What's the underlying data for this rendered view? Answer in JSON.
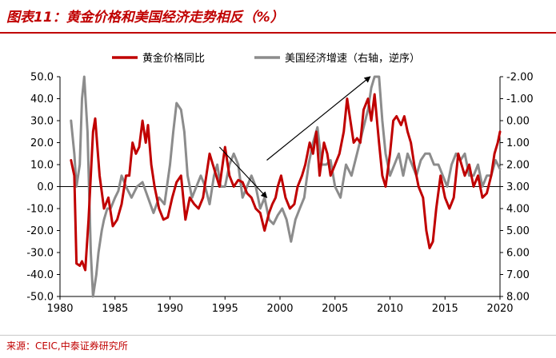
{
  "header": {
    "title": "图表11：黄金价格和美国经济走势相反（%）"
  },
  "footer": {
    "source": "来源：CEIC,中泰证券研究所"
  },
  "chart_data": {
    "type": "line",
    "title": "图表11：黄金价格和美国经济走势相反（%）",
    "xlabel": "",
    "ylabel": "",
    "xlim": [
      1980,
      2020
    ],
    "x_ticks": [
      "1980",
      "1985",
      "1990",
      "1995",
      "2000",
      "2005",
      "2010",
      "2015",
      "2020"
    ],
    "ylim_left": [
      -50,
      50
    ],
    "y_ticks_left": [
      "50.0",
      "40.0",
      "30.0",
      "20.0",
      "10.0",
      "0.0",
      "-10.0",
      "-20.0",
      "-30.0",
      "-40.0",
      "-50.0"
    ],
    "ylim_right": [
      -2,
      8
    ],
    "right_axis_inverted": true,
    "y_ticks_right": [
      "-2.00",
      "-1.00",
      "0.00",
      "1.00",
      "2.00",
      "3.00",
      "4.00",
      "5.00",
      "6.00",
      "7.00",
      "8.00"
    ],
    "legend_position": "top",
    "grid": false,
    "series": [
      {
        "name": "黄金价格同比",
        "axis": "left",
        "color": "#c00000",
        "x": [
          1981.0,
          1981.3,
          1981.5,
          1981.8,
          1982.0,
          1982.3,
          1982.6,
          1983.0,
          1983.2,
          1983.6,
          1984.0,
          1984.4,
          1984.8,
          1985.2,
          1985.6,
          1986.0,
          1986.3,
          1986.6,
          1986.9,
          1987.2,
          1987.5,
          1987.8,
          1988.0,
          1988.3,
          1988.6,
          1989.0,
          1989.4,
          1989.8,
          1990.2,
          1990.6,
          1991.0,
          1991.4,
          1991.8,
          1992.2,
          1992.6,
          1993.0,
          1993.3,
          1993.6,
          1993.9,
          1994.2,
          1994.5,
          1995.0,
          1995.4,
          1995.8,
          1996.2,
          1996.6,
          1997.0,
          1997.4,
          1997.8,
          1998.2,
          1998.6,
          1999.0,
          1999.3,
          1999.6,
          1999.8,
          2000.1,
          2000.5,
          2000.9,
          2001.3,
          2001.6,
          2002.0,
          2002.3,
          2002.7,
          2003.0,
          2003.3,
          2003.6,
          2004.0,
          2004.3,
          2004.6,
          2005.0,
          2005.4,
          2005.8,
          2006.1,
          2006.4,
          2006.7,
          2007.0,
          2007.3,
          2007.6,
          2008.0,
          2008.3,
          2008.6,
          2009.0,
          2009.3,
          2009.6,
          2010.0,
          2010.3,
          2010.6,
          2011.0,
          2011.3,
          2011.6,
          2011.9,
          2012.2,
          2012.6,
          2013.0,
          2013.3,
          2013.6,
          2013.9,
          2014.2,
          2014.6,
          2015.0,
          2015.4,
          2015.8,
          2016.2,
          2016.5,
          2016.8,
          2017.2,
          2017.6,
          2018.0,
          2018.4,
          2018.8,
          2019.2,
          2019.5,
          2019.8,
          2020.0
        ],
        "values": [
          12,
          5,
          -35,
          -36,
          -34,
          -38,
          -15,
          25,
          31,
          5,
          -10,
          -5,
          -18,
          -15,
          -8,
          5,
          5,
          20,
          15,
          18,
          30,
          20,
          28,
          10,
          0,
          -10,
          -15,
          -14,
          -5,
          2,
          5,
          -15,
          -5,
          -8,
          -10,
          -5,
          5,
          15,
          10,
          5,
          0,
          18,
          5,
          0,
          3,
          2,
          -3,
          -5,
          -10,
          -12,
          -20,
          -12,
          -8,
          -5,
          0,
          5,
          -5,
          -10,
          -8,
          0,
          5,
          10,
          20,
          15,
          25,
          5,
          20,
          15,
          5,
          10,
          15,
          25,
          40,
          30,
          20,
          22,
          20,
          35,
          40,
          30,
          42,
          20,
          5,
          0,
          15,
          30,
          32,
          28,
          32,
          25,
          20,
          10,
          0,
          -5,
          -20,
          -28,
          -25,
          -10,
          5,
          -5,
          -10,
          -5,
          15,
          10,
          5,
          10,
          0,
          5,
          -5,
          -3,
          5,
          15,
          20,
          25
        ]
      },
      {
        "name": "美国经济增速（右轴，逆序）",
        "axis": "right",
        "color": "#8c8c8c",
        "x": [
          1981.0,
          1981.3,
          1981.5,
          1981.8,
          1982.0,
          1982.2,
          1982.5,
          1982.8,
          1983.0,
          1983.3,
          1983.5,
          1983.8,
          1984.0,
          1984.3,
          1984.6,
          1985.0,
          1985.3,
          1985.6,
          1986.0,
          1986.5,
          1987.0,
          1987.5,
          1988.0,
          1988.5,
          1989.0,
          1989.5,
          1990.0,
          1990.3,
          1990.6,
          1991.0,
          1991.3,
          1991.6,
          1992.0,
          1992.4,
          1992.8,
          1993.2,
          1993.6,
          1994.0,
          1994.3,
          1994.6,
          1995.0,
          1995.4,
          1995.8,
          1996.2,
          1996.6,
          1997.0,
          1997.4,
          1997.8,
          1998.2,
          1998.6,
          1999.0,
          1999.4,
          1999.8,
          2000.2,
          2000.6,
          2001.0,
          2001.4,
          2001.8,
          2002.2,
          2002.6,
          2003.0,
          2003.4,
          2003.8,
          2004.2,
          2004.6,
          2005.0,
          2005.5,
          2006.0,
          2006.5,
          2007.0,
          2007.5,
          2008.0,
          2008.3,
          2008.6,
          2009.0,
          2009.3,
          2009.6,
          2010.0,
          2010.4,
          2010.8,
          2011.2,
          2011.6,
          2012.0,
          2012.4,
          2012.8,
          2013.2,
          2013.6,
          2014.0,
          2014.4,
          2014.8,
          2015.2,
          2015.6,
          2016.0,
          2016.4,
          2016.8,
          2017.2,
          2017.6,
          2018.0,
          2018.4,
          2018.8,
          2019.2,
          2019.6,
          2020.0
        ],
        "values": [
          0.0,
          1.5,
          3.0,
          2.0,
          -1.0,
          -2.5,
          0.5,
          6.0,
          8.0,
          7.0,
          6.0,
          5.0,
          4.5,
          4.0,
          4.0,
          3.5,
          3.2,
          2.5,
          3.0,
          3.5,
          3.0,
          2.8,
          3.5,
          4.2,
          3.5,
          3.8,
          2.0,
          0.5,
          -0.8,
          -0.5,
          0.5,
          2.5,
          3.5,
          3.0,
          2.5,
          3.0,
          3.8,
          2.5,
          2.0,
          3.0,
          3.0,
          2.0,
          1.5,
          2.0,
          3.5,
          3.0,
          2.5,
          3.0,
          4.0,
          3.5,
          4.5,
          4.7,
          4.3,
          4.0,
          4.5,
          5.5,
          4.5,
          4.0,
          3.5,
          2.0,
          1.0,
          0.3,
          2.0,
          2.0,
          1.8,
          3.0,
          3.5,
          2.0,
          2.5,
          1.5,
          0.5,
          -0.5,
          -1.5,
          -2.5,
          -2.5,
          0.0,
          1.5,
          2.5,
          2.0,
          1.5,
          2.5,
          1.5,
          2.0,
          2.5,
          1.8,
          1.5,
          1.5,
          2.0,
          2.0,
          2.5,
          3.0,
          2.0,
          1.5,
          1.8,
          1.5,
          2.5,
          2.5,
          2.0,
          3.0,
          2.5,
          2.5,
          1.8,
          2.2
        ]
      }
    ],
    "annotations": [
      {
        "type": "arrow",
        "from": [
          1994.5,
          18
        ],
        "to": [
          1998.8,
          -5
        ],
        "color": "#000000"
      },
      {
        "type": "arrow",
        "from": [
          1998.8,
          12
        ],
        "to": [
          2008.2,
          50
        ],
        "color": "#000000"
      }
    ]
  }
}
